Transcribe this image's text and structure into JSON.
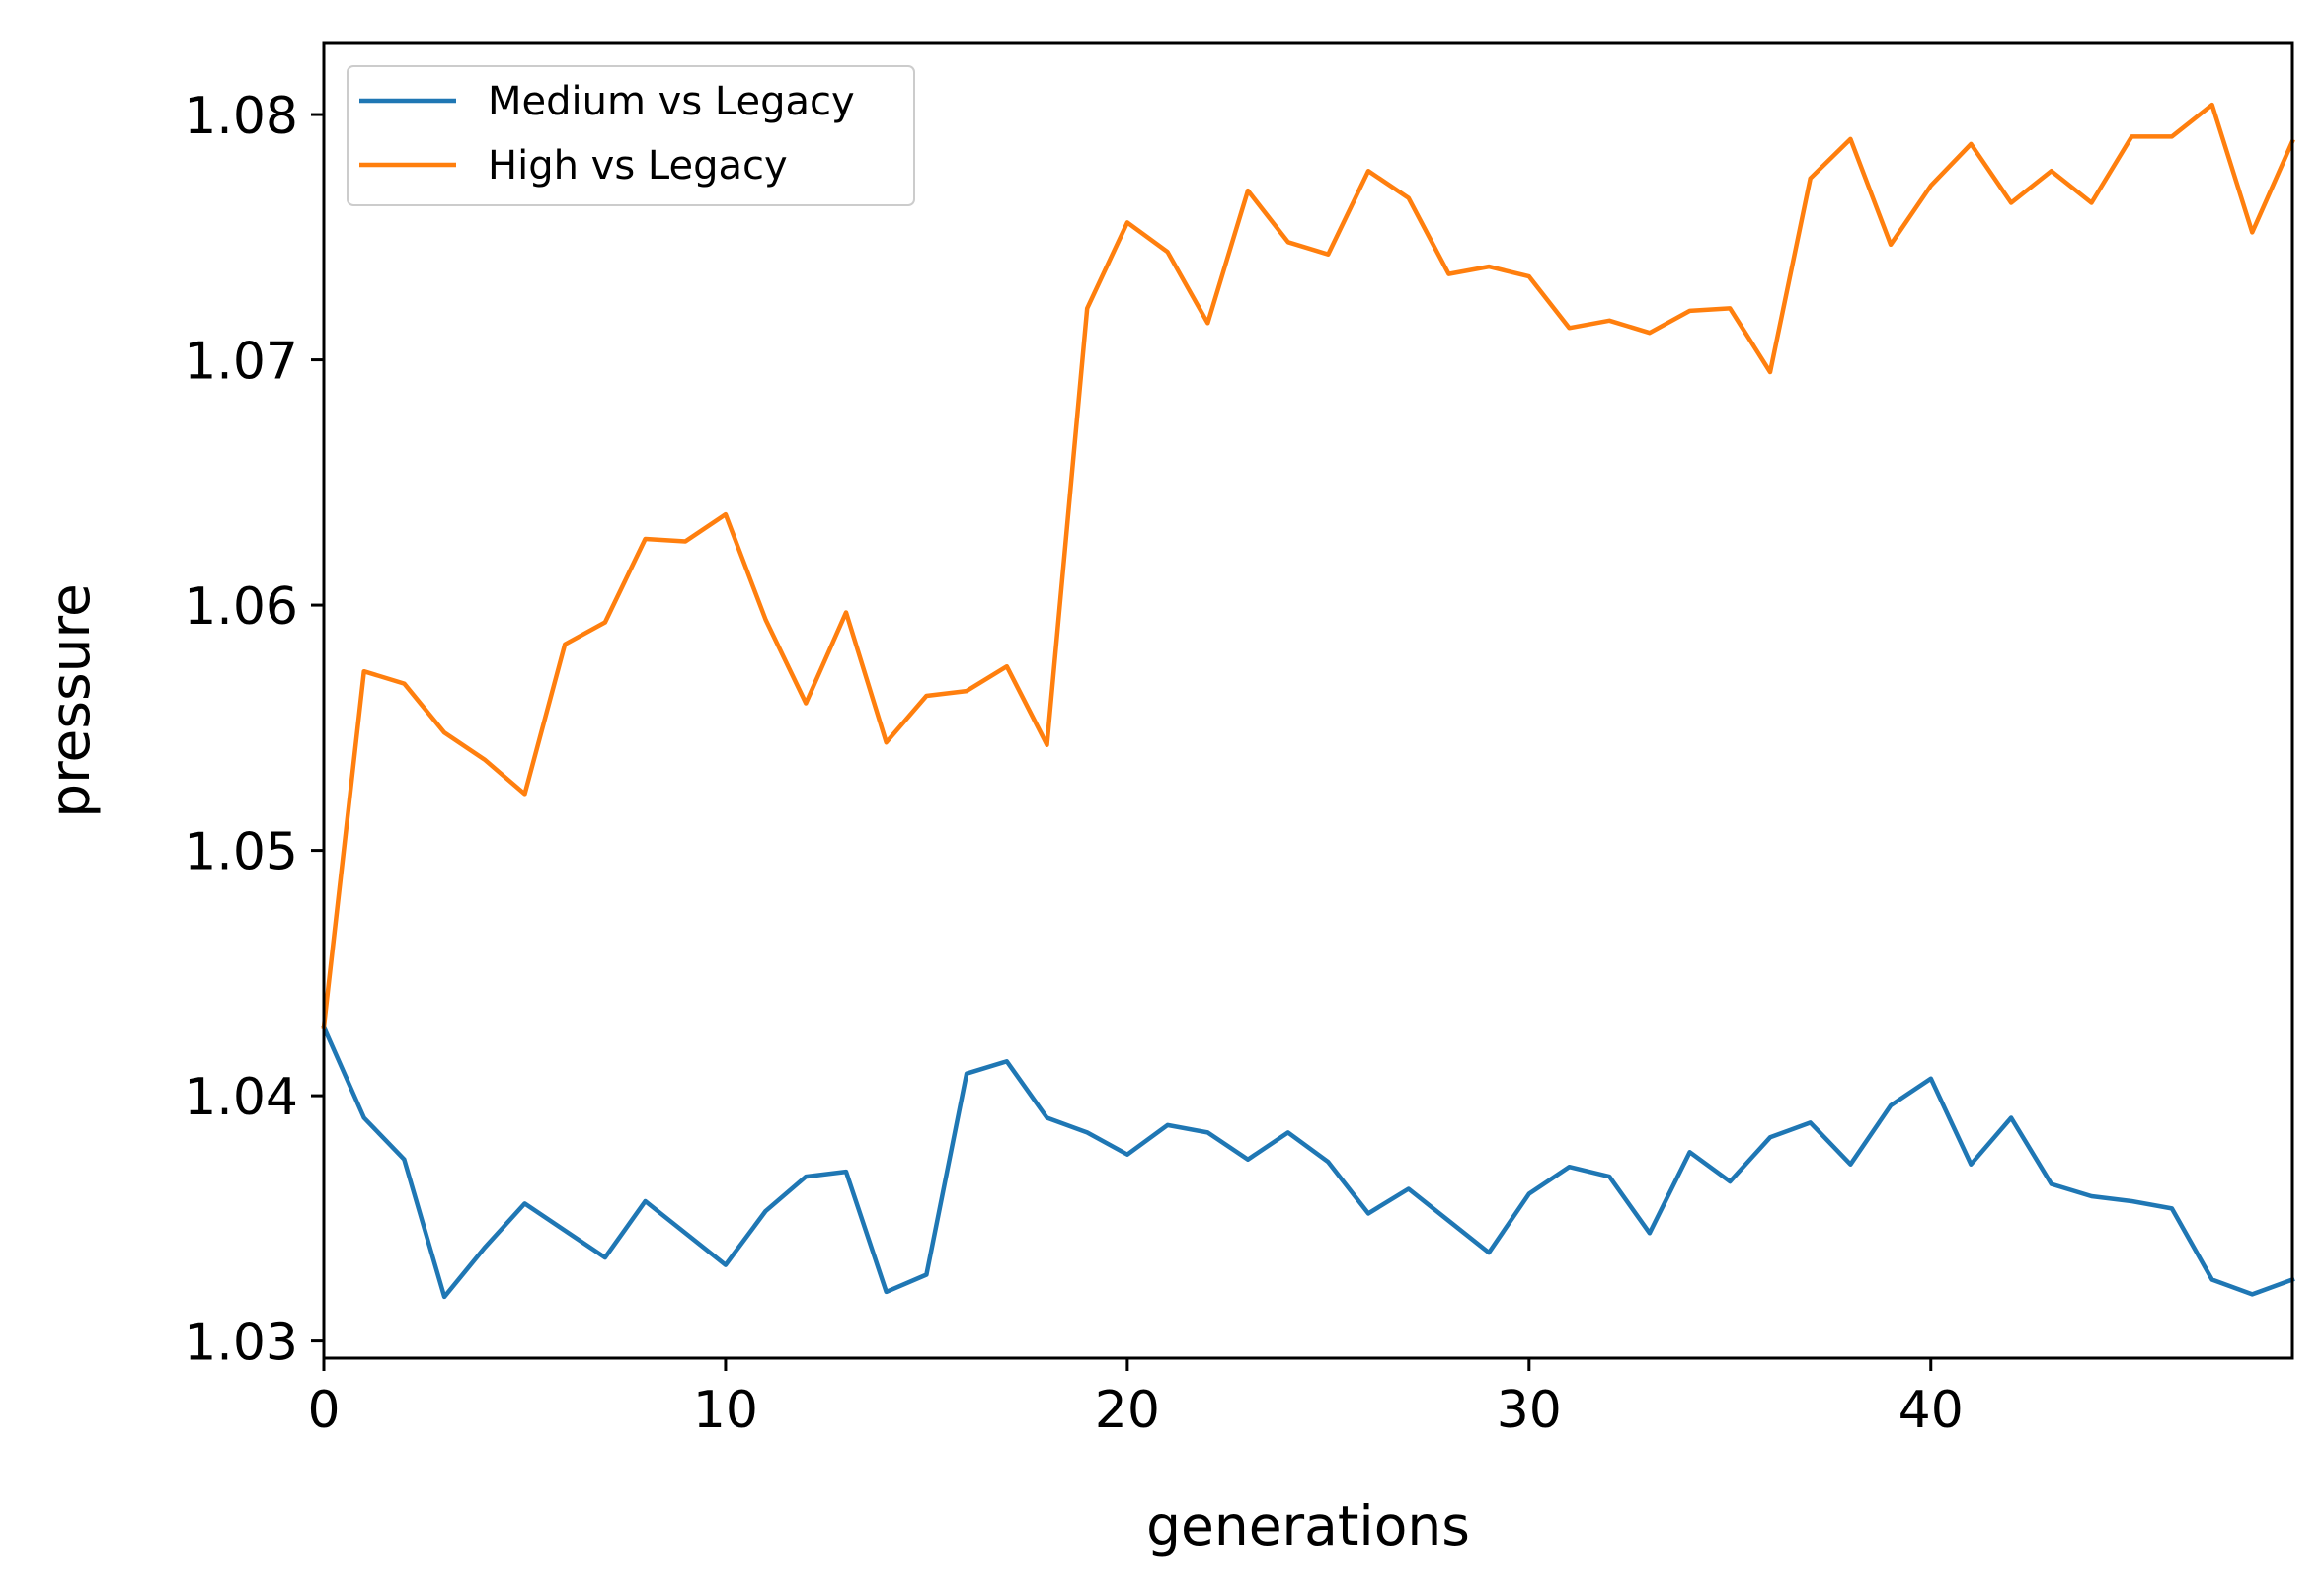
{
  "chart_data": {
    "type": "line",
    "title": "",
    "xlabel": "generations",
    "ylabel": "pressure",
    "xlim": [
      0,
      49
    ],
    "ylim": [
      1.0293,
      1.0829
    ],
    "xticks": [
      0,
      10,
      20,
      30,
      40
    ],
    "xtick_labels": [
      "0",
      "10",
      "20",
      "30",
      "40"
    ],
    "yticks": [
      1.03,
      1.04,
      1.05,
      1.06,
      1.07,
      1.08
    ],
    "ytick_labels": [
      "1.03",
      "1.04",
      "1.05",
      "1.06",
      "1.07",
      "1.08"
    ],
    "grid": false,
    "legend_position": "upper-left",
    "x": [
      0,
      1,
      2,
      3,
      4,
      5,
      6,
      7,
      8,
      9,
      10,
      11,
      12,
      13,
      14,
      15,
      16,
      17,
      18,
      19,
      20,
      21,
      22,
      23,
      24,
      25,
      26,
      27,
      28,
      29,
      30,
      31,
      32,
      33,
      34,
      35,
      36,
      37,
      38,
      39,
      40,
      41,
      42,
      43,
      44,
      45,
      46,
      47,
      48,
      49
    ],
    "series": [
      {
        "name": "Medium vs Legacy",
        "color": "#1f77b4",
        "values": [
          1.0428,
          1.0391,
          1.0374,
          1.0318,
          1.0338,
          1.0356,
          1.0345,
          1.0334,
          1.0357,
          1.0344,
          1.0331,
          1.0353,
          1.0367,
          1.0369,
          1.032,
          1.0327,
          1.0409,
          1.0414,
          1.0391,
          1.0385,
          1.0376,
          1.0388,
          1.0385,
          1.0374,
          1.0385,
          1.0373,
          1.0352,
          1.0362,
          1.0349,
          1.0336,
          1.036,
          1.0371,
          1.0367,
          1.0344,
          1.0377,
          1.0365,
          1.0383,
          1.0389,
          1.0372,
          1.0396,
          1.0407,
          1.0372,
          1.0391,
          1.0364,
          1.0359,
          1.0357,
          1.0354,
          1.0325,
          1.0319,
          1.0325
        ]
      },
      {
        "name": "High vs Legacy",
        "color": "#ff7f0e",
        "values": [
          1.0428,
          1.0573,
          1.0568,
          1.0548,
          1.0537,
          1.0523,
          1.0584,
          1.0593,
          1.0627,
          1.0626,
          1.0637,
          1.0594,
          1.056,
          1.0597,
          1.0544,
          1.0563,
          1.0565,
          1.0575,
          1.0543,
          1.0721,
          1.0756,
          1.0744,
          1.0715,
          1.0769,
          1.0748,
          1.0743,
          1.0777,
          1.0766,
          1.0735,
          1.0738,
          1.0734,
          1.0713,
          1.0716,
          1.0711,
          1.072,
          1.0721,
          1.0695,
          1.0774,
          1.079,
          1.0747,
          1.0771,
          1.0788,
          1.0764,
          1.0777,
          1.0764,
          1.0791,
          1.0791,
          1.0804,
          1.0752,
          1.0789
        ]
      }
    ]
  }
}
